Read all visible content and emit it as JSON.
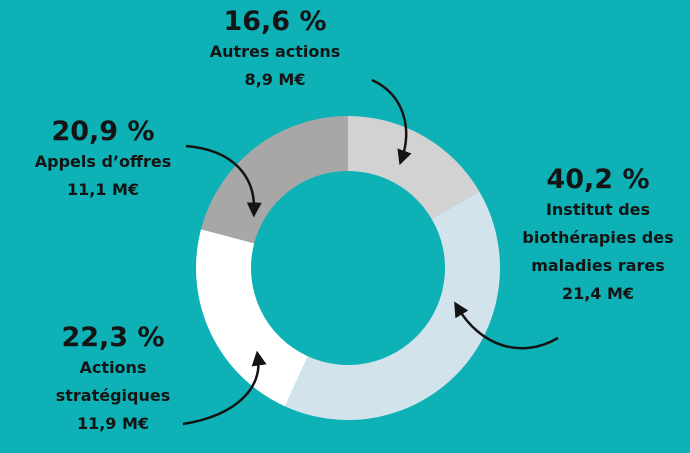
{
  "chart_data": {
    "type": "donut",
    "categories": [
      "Autres actions",
      "Institut des biothérapies des maladies rares",
      "Actions stratégiques",
      "Appels d’offres"
    ],
    "values": [
      16.6,
      40.2,
      22.3,
      20.9
    ],
    "value_labels": [
      "16,6 %",
      "40,2 %",
      "22,3 %",
      "20,9 %"
    ],
    "amount_labels": [
      "8,9 M€",
      "21,4 M€",
      "11,9 M€",
      "11,1 M€"
    ],
    "colors": [
      "#d2d2d2",
      "#d3e3ec",
      "#ffffff",
      "#a7a7a7"
    ]
  }
}
